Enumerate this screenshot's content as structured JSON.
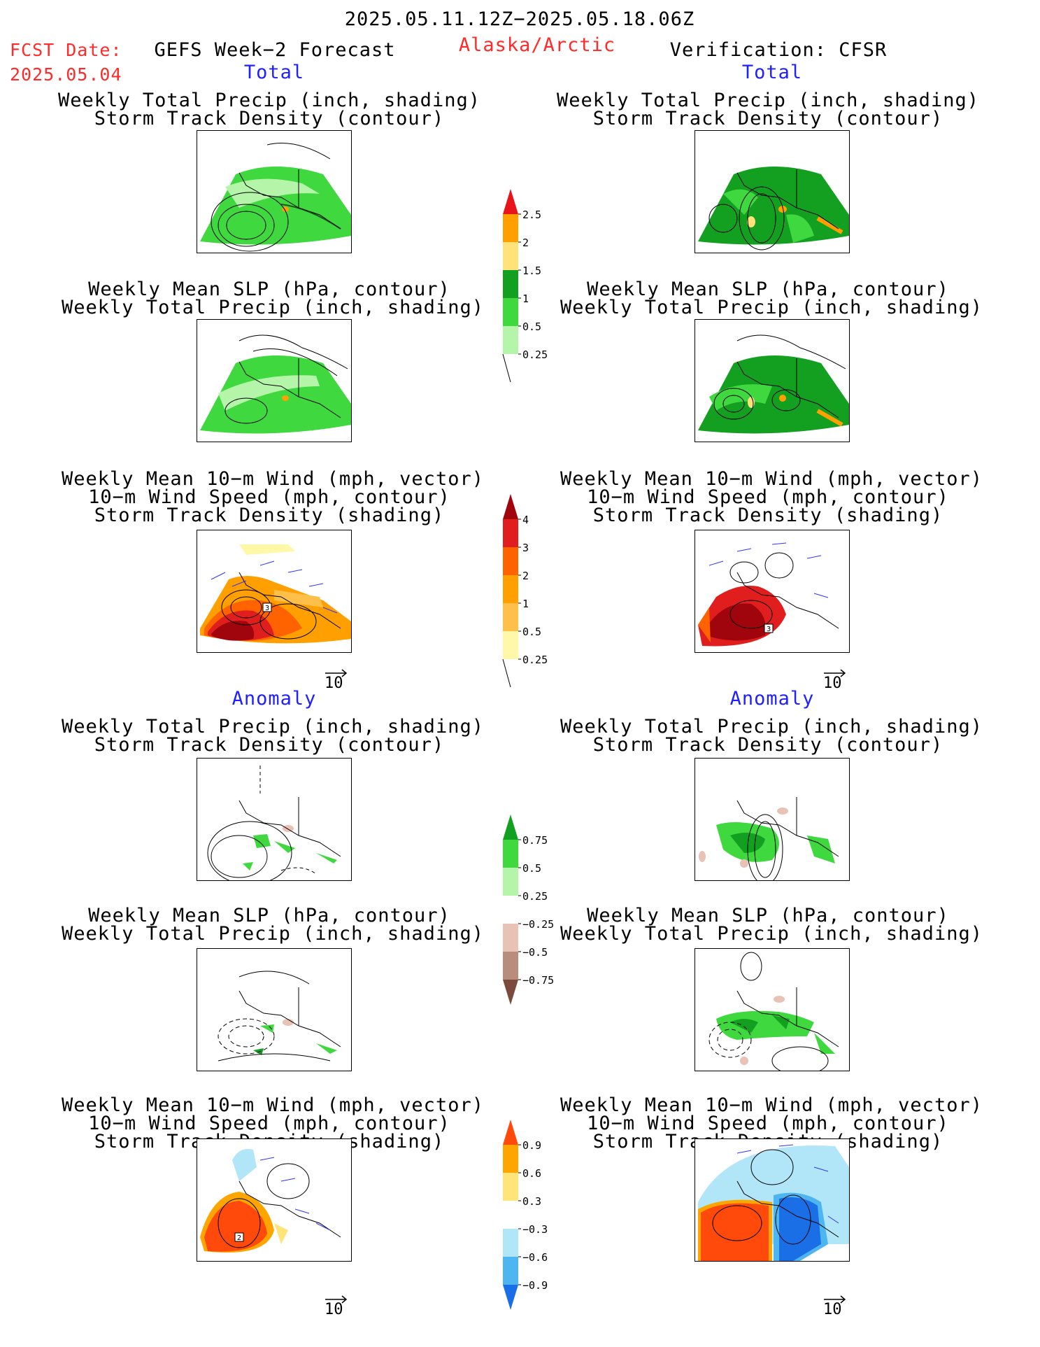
{
  "header": {
    "date_range": "2025.05.11.12Z−2025.05.18.06Z",
    "fcst_label": "FCST Date:",
    "fcst_date": "2025.05.04",
    "left_model": "GEFS Week−2 Forecast",
    "region": "Alaska/Arctic",
    "right_model": "Verification: CFSR"
  },
  "sections": {
    "total": "Total",
    "anomaly": "Anomaly"
  },
  "titles": {
    "precip_track": [
      "Weekly Total Precip (inch, shading)",
      "Storm Track Density (contour)"
    ],
    "slp_precip": [
      "Weekly Mean SLP (hPa, contour)",
      "Weekly Total Precip (inch, shading)"
    ],
    "wind_track": [
      "Weekly Mean 10−m Wind (mph, vector)",
      "10−m Wind Speed (mph, contour)",
      "Storm Track Density (shading)"
    ]
  },
  "vector_ref": "10",
  "colorbars": {
    "precip_total": {
      "labels": [
        "2.5",
        "2",
        "1.5",
        "1",
        "0.5",
        "0.25"
      ],
      "colors": [
        "#e8141a",
        "#ffa000",
        "#ffe27a",
        "#13a020",
        "#3fd83f",
        "#b4f5a9"
      ]
    },
    "track_total": {
      "labels": [
        "4",
        "3",
        "2",
        "1",
        "0.5",
        "0.25"
      ],
      "colors": [
        "#a0050d",
        "#e11e1e",
        "#ff6300",
        "#ffa000",
        "#ffc04a",
        "#fff8a8"
      ]
    },
    "precip_anom": {
      "labels": [
        "0.75",
        "0.5",
        "0.25",
        "−0.25",
        "−0.5",
        "−0.75"
      ],
      "colors": [
        "#13a020",
        "#3fd83f",
        "#b4f5a9",
        "#ffffff",
        "#e8c2b4",
        "#b88d7e",
        "#7a4a3d"
      ]
    },
    "track_anom": {
      "labels": [
        "0.9",
        "0.6",
        "0.3",
        "−0.3",
        "−0.6",
        "−0.9"
      ],
      "colors": [
        "#ff4a0c",
        "#ffa500",
        "#ffe47a",
        "#ffffff",
        "#b0e6f7",
        "#4db6f0",
        "#1a6ee6"
      ]
    },
    "colors_note": "colorbar fill colors from top to bottom"
  },
  "panels": [
    {
      "id": "total-fcst-precip-track",
      "name": "Weekly Total Precip forecast panel"
    },
    {
      "id": "total-verif-precip-track",
      "name": "Weekly Total Precip verification panel"
    },
    {
      "id": "total-fcst-slp",
      "name": "Weekly Mean SLP forecast panel"
    },
    {
      "id": "total-verif-slp",
      "name": "Weekly Mean SLP verification panel"
    },
    {
      "id": "total-fcst-wind",
      "name": "Weekly Mean Wind forecast panel",
      "box_label": "3"
    },
    {
      "id": "total-verif-wind",
      "name": "Weekly Mean Wind verification panel",
      "box_label": "3"
    },
    {
      "id": "anom-fcst-precip-track",
      "name": "Precip anomaly forecast panel"
    },
    {
      "id": "anom-verif-precip-track",
      "name": "Precip anomaly verification panel"
    },
    {
      "id": "anom-fcst-slp",
      "name": "SLP anomaly forecast panel"
    },
    {
      "id": "anom-verif-slp",
      "name": "SLP anomaly verification panel"
    },
    {
      "id": "anom-fcst-wind",
      "name": "Wind anomaly forecast panel",
      "box_label": "2"
    },
    {
      "id": "anom-verif-wind",
      "name": "Wind anomaly verification panel"
    }
  ]
}
